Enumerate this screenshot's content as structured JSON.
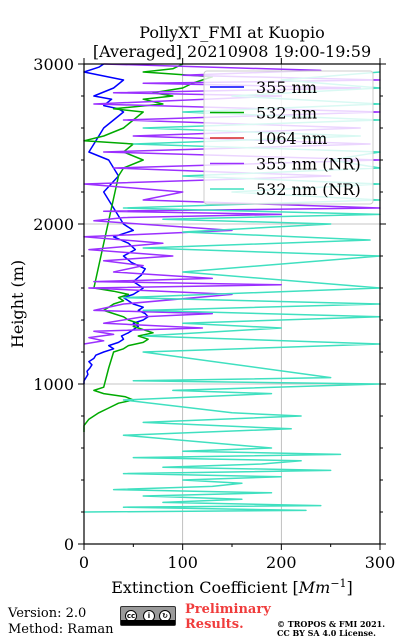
{
  "chart_data": {
    "type": "line",
    "title": "PollyXT_FMI at Kuopio",
    "subtitle": "[Averaged] 20210908 19:00-19:59",
    "xlabel": "Extinction Coefficient [",
    "xlabel_unit": "Mm",
    "xlabel_exp": "−1",
    "xlabel_close": "]",
    "ylabel": "Height (m)",
    "xlim": [
      0,
      300
    ],
    "ylim": [
      0,
      3000
    ],
    "xticks": [
      0,
      100,
      200,
      300
    ],
    "yticks": [
      0,
      1000,
      2000,
      3000
    ],
    "grid": true,
    "legend_position": "top-right",
    "series": [
      {
        "name": "355 nm",
        "color": "#0000ff",
        "x": [
          0,
          0,
          2,
          4,
          3,
          6,
          8,
          5,
          10,
          12,
          20,
          30,
          25,
          35,
          40,
          38,
          45,
          50,
          55,
          50,
          60,
          65,
          62,
          55,
          60,
          50,
          45,
          40,
          50,
          55,
          60,
          50,
          58,
          62,
          48,
          40,
          52,
          45,
          30,
          50,
          40,
          30,
          20,
          35,
          25,
          5,
          10,
          15,
          20,
          30,
          40,
          35,
          20,
          28,
          10,
          30,
          40,
          0,
          15,
          20
        ],
        "y": [
          1000,
          1020,
          1040,
          1060,
          1080,
          1100,
          1120,
          1140,
          1160,
          1180,
          1200,
          1220,
          1240,
          1260,
          1280,
          1300,
          1320,
          1340,
          1360,
          1380,
          1400,
          1420,
          1440,
          1460,
          1480,
          1500,
          1520,
          1540,
          1560,
          1580,
          1600,
          1640,
          1680,
          1720,
          1760,
          1800,
          1840,
          1880,
          1920,
          1960,
          2000,
          2100,
          2200,
          2300,
          2400,
          2450,
          2500,
          2550,
          2600,
          2650,
          2700,
          2720,
          2740,
          2780,
          2800,
          2850,
          2900,
          2950,
          2980,
          3000
        ]
      },
      {
        "name": "532 nm",
        "color": "#00aa00",
        "x": [
          0,
          0,
          5,
          15,
          25,
          35,
          50,
          42,
          20,
          10,
          20,
          25,
          30,
          40,
          45,
          60,
          65,
          55,
          70,
          60,
          50,
          55,
          45,
          40,
          30,
          20,
          25,
          30,
          40,
          35,
          45,
          30,
          10,
          35,
          40,
          60,
          40,
          50,
          0,
          20,
          40,
          50,
          60,
          30,
          80,
          60,
          90,
          70,
          100,
          110,
          120,
          130,
          60,
          90,
          100
        ],
        "y": [
          700,
          740,
          780,
          820,
          850,
          880,
          900,
          920,
          940,
          960,
          980,
          1100,
          1200,
          1220,
          1240,
          1260,
          1280,
          1300,
          1320,
          1340,
          1360,
          1380,
          1400,
          1420,
          1440,
          1460,
          1480,
          1500,
          1520,
          1540,
          1560,
          1580,
          1600,
          2300,
          2350,
          2400,
          2450,
          2500,
          2520,
          2550,
          2600,
          2650,
          2700,
          2720,
          2750,
          2780,
          2800,
          2820,
          2850,
          2880,
          2900,
          2920,
          2950,
          2970,
          3000
        ]
      },
      {
        "name": "1064 nm",
        "color": "#d62728",
        "x": [],
        "y": []
      },
      {
        "name": "355 nm (NR)",
        "color": "#9b30ff",
        "x": [
          0,
          20,
          5,
          30,
          10,
          120,
          20,
          60,
          130,
          10,
          40,
          150,
          5,
          200,
          10,
          130,
          30,
          60,
          20,
          90,
          5,
          80,
          0,
          150,
          10,
          40,
          200,
          20,
          300,
          60,
          100,
          0,
          250,
          30,
          300,
          20,
          290,
          50,
          280,
          40,
          300,
          10,
          200,
          30,
          280,
          60,
          300,
          100,
          240,
          20
        ],
        "y": [
          1250,
          1270,
          1290,
          1310,
          1330,
          1350,
          1380,
          1420,
          1440,
          1460,
          1500,
          1560,
          1600,
          1620,
          1640,
          1660,
          1700,
          1740,
          1770,
          1800,
          1840,
          1880,
          1920,
          1960,
          2020,
          2040,
          2060,
          2080,
          2100,
          2150,
          2200,
          2250,
          2300,
          2350,
          2400,
          2450,
          2500,
          2550,
          2600,
          2650,
          2700,
          2750,
          2800,
          2820,
          2850,
          2880,
          2900,
          2930,
          2960,
          3000
        ]
      },
      {
        "name": "532 nm (NR)",
        "color": "#40e0c0",
        "x": [
          0,
          225,
          40,
          240,
          80,
          160,
          60,
          190,
          30,
          130,
          160,
          100,
          200,
          40,
          250,
          80,
          180,
          220,
          50,
          260,
          100,
          190,
          40,
          210,
          60,
          220,
          150,
          40,
          190,
          90,
          300,
          50,
          250,
          60,
          300,
          60,
          200,
          100,
          300,
          60,
          300,
          40,
          300,
          100,
          300,
          60,
          290,
          100,
          250,
          80,
          300,
          40,
          300,
          150,
          300,
          100,
          300,
          250,
          300,
          50,
          280,
          60,
          300,
          100,
          300,
          150,
          300,
          200,
          300
        ],
        "y": [
          200,
          210,
          230,
          240,
          260,
          280,
          300,
          320,
          340,
          360,
          380,
          400,
          420,
          440,
          460,
          480,
          500,
          520,
          540,
          560,
          580,
          600,
          680,
          720,
          760,
          800,
          820,
          900,
          940,
          960,
          1000,
          1020,
          1040,
          1200,
          1250,
          1300,
          1350,
          1380,
          1420,
          1460,
          1500,
          1540,
          1600,
          1700,
          1800,
          1850,
          1900,
          1950,
          2000,
          2030,
          2060,
          2100,
          2150,
          2200,
          2250,
          2300,
          2350,
          2400,
          2450,
          2500,
          2550,
          2600,
          2650,
          2700,
          2750,
          2800,
          2850,
          2900,
          2950
        ]
      }
    ]
  },
  "footer": {
    "version": "Version: 2.0",
    "method": "Method: Raman",
    "cc_badge_text": "BY SA",
    "preliminary_line1": "Preliminary",
    "preliminary_line2": "Results.",
    "copyright_line1": "© TROPOS & FMI 2021.",
    "copyright_line2": "CC BY SA 4.0 License."
  },
  "colors": {
    "preliminary": "#f03c3c",
    "grid": "#b0b0b0"
  }
}
